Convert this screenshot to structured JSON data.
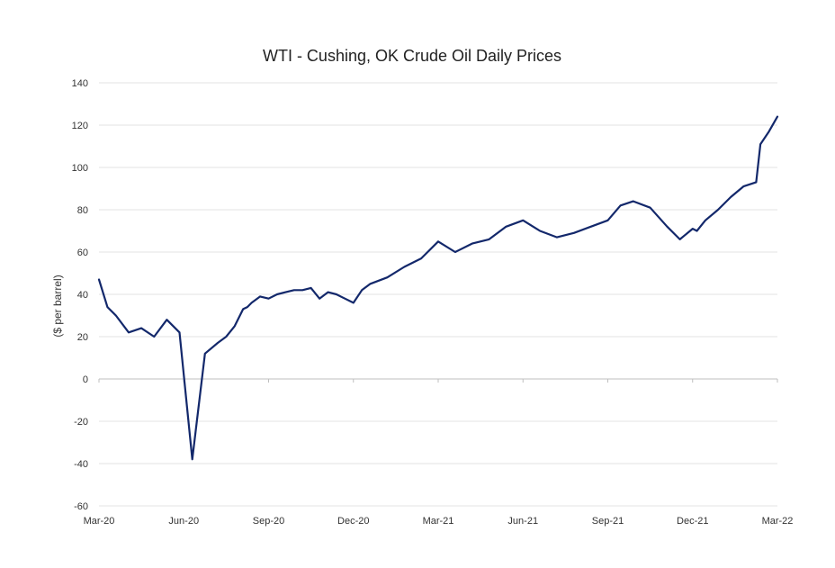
{
  "chart_data": {
    "type": "line",
    "title": "WTI - Cushing, OK Crude Oil Daily Prices",
    "xlabel": "",
    "ylabel": "($ per barrel)",
    "ylim": [
      -60,
      140
    ],
    "yticks": [
      -60,
      -40,
      -20,
      0,
      20,
      40,
      60,
      80,
      100,
      120,
      140
    ],
    "xticks": [
      "Mar-20",
      "Jun-20",
      "Sep-20",
      "Dec-20",
      "Mar-21",
      "Jun-21",
      "Sep-21",
      "Dec-21",
      "Mar-22"
    ],
    "grid": true,
    "series": [
      {
        "name": "",
        "color": "#13286b",
        "x": [
          0,
          0.1,
          0.2,
          0.35,
          0.5,
          0.65,
          0.8,
          0.95,
          1.1,
          1.25,
          1.4,
          1.5,
          1.6,
          1.7,
          1.75,
          1.8,
          1.9,
          2.0,
          2.1,
          2.2,
          2.3,
          2.4,
          2.5,
          2.6,
          2.7,
          2.8,
          2.9,
          3.0,
          3.1,
          3.2,
          3.4,
          3.6,
          3.8,
          4.0,
          4.2,
          4.4,
          4.6,
          4.8,
          5.0,
          5.2,
          5.4,
          5.6,
          5.8,
          6.0,
          6.15,
          6.3,
          6.5,
          6.7,
          6.85,
          7.0,
          7.05,
          7.15,
          7.3,
          7.45,
          7.6,
          7.75,
          7.8,
          7.9,
          8.0
        ],
        "values": [
          47,
          34,
          30,
          22,
          24,
          20,
          28,
          22,
          -38,
          12,
          17,
          20,
          25,
          33,
          34,
          36,
          39,
          38,
          40,
          41,
          42,
          42,
          43,
          38,
          41,
          40,
          38,
          36,
          42,
          45,
          48,
          53,
          57,
          65,
          60,
          64,
          66,
          72,
          75,
          70,
          67,
          69,
          72,
          75,
          82,
          84,
          81,
          72,
          66,
          71,
          70,
          75,
          80,
          86,
          91,
          93,
          111,
          117,
          124
        ]
      }
    ]
  }
}
